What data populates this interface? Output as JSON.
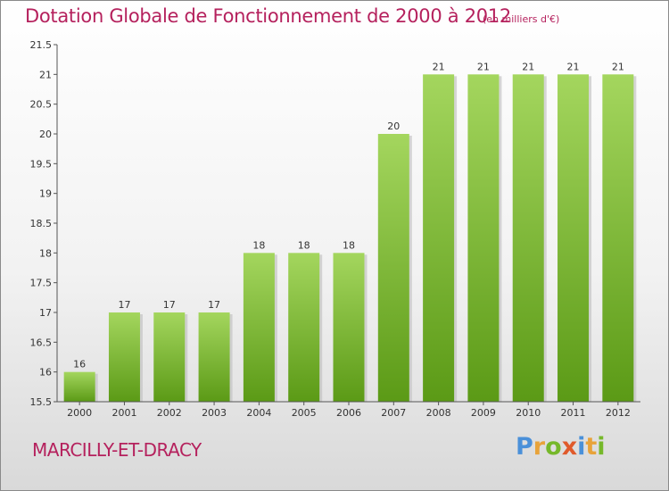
{
  "chart_data": {
    "type": "bar",
    "title": "Dotation Globale de Fonctionnement de 2000 à 2012",
    "subtitle": "(en milliers d'€)",
    "categories": [
      "2000",
      "2001",
      "2002",
      "2003",
      "2004",
      "2005",
      "2006",
      "2007",
      "2008",
      "2009",
      "2010",
      "2011",
      "2012"
    ],
    "values": [
      16,
      17,
      17,
      17,
      18,
      18,
      18,
      20,
      21,
      21,
      21,
      21,
      21
    ],
    "data_labels": [
      "16",
      "17",
      "17",
      "17",
      "18",
      "18",
      "18",
      "20",
      "21",
      "21",
      "21",
      "21",
      "21"
    ],
    "ylim": [
      15.5,
      21.5
    ],
    "yticks": [
      "15.5",
      "16",
      "16.5",
      "17",
      "17.5",
      "18",
      "18.5",
      "19",
      "19.5",
      "20",
      "20.5",
      "21",
      "21.5"
    ],
    "grid": false,
    "legend": "none",
    "bar_color_top": "#a4d65e",
    "bar_color_bottom": "#5b9a16",
    "xlabel": "",
    "ylabel": ""
  },
  "footer": {
    "commune": "MARCILLY-ET-DRACY",
    "logo_letters": [
      {
        "char": "P",
        "color": "#4a90d9"
      },
      {
        "char": "r",
        "color": "#e8a33a"
      },
      {
        "char": "o",
        "color": "#76b82a"
      },
      {
        "char": "x",
        "color": "#e05a2b"
      },
      {
        "char": "i",
        "color": "#4a90d9"
      },
      {
        "char": "t",
        "color": "#e8a33a"
      },
      {
        "char": "i",
        "color": "#76b82a"
      }
    ]
  },
  "colors": {
    "title": "#b5215d",
    "axis": "#555555"
  }
}
